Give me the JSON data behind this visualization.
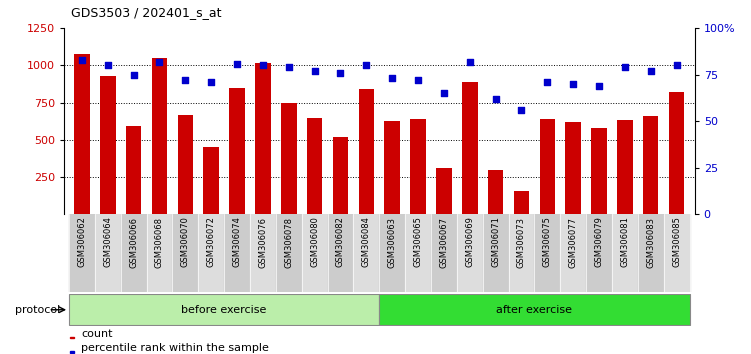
{
  "title": "GDS3503 / 202401_s_at",
  "samples": [
    "GSM306062",
    "GSM306064",
    "GSM306066",
    "GSM306068",
    "GSM306070",
    "GSM306072",
    "GSM306074",
    "GSM306076",
    "GSM306078",
    "GSM306080",
    "GSM306082",
    "GSM306084",
    "GSM306063",
    "GSM306065",
    "GSM306067",
    "GSM306069",
    "GSM306071",
    "GSM306073",
    "GSM306075",
    "GSM306077",
    "GSM306079",
    "GSM306081",
    "GSM306083",
    "GSM306085"
  ],
  "counts": [
    1080,
    930,
    590,
    1050,
    670,
    450,
    850,
    1020,
    750,
    650,
    520,
    840,
    630,
    640,
    310,
    890,
    295,
    155,
    640,
    620,
    580,
    635,
    660,
    820
  ],
  "percentiles": [
    83,
    80,
    75,
    82,
    72,
    71,
    81,
    80,
    79,
    77,
    76,
    80,
    73,
    72,
    65,
    82,
    62,
    56,
    71,
    70,
    69,
    79,
    77,
    80
  ],
  "before_exercise_count": 12,
  "after_exercise_count": 12,
  "bar_color": "#cc0000",
  "dot_color": "#0000cc",
  "ylim_left": [
    0,
    1250
  ],
  "ylim_right": [
    0,
    100
  ],
  "yticks_left": [
    250,
    500,
    750,
    1000,
    1250
  ],
  "yticks_right": [
    0,
    25,
    50,
    75,
    100
  ],
  "grid_values": [
    250,
    500,
    750,
    1000
  ],
  "before_color": "#bbeeaa",
  "after_color": "#33dd33",
  "bg_col_even": "#cccccc",
  "bg_col_odd": "#dddddd",
  "protocol_label": "protocol",
  "before_label": "before exercise",
  "after_label": "after exercise",
  "legend_count_label": "count",
  "legend_percentile_label": "percentile rank within the sample"
}
